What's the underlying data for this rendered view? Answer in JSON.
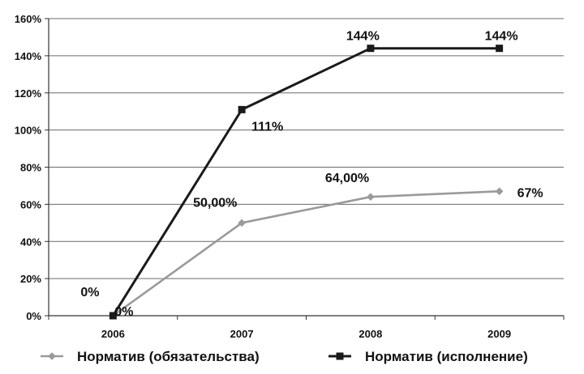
{
  "chart_data": {
    "type": "line",
    "title": "",
    "xlabel": "",
    "ylabel": "",
    "categories": [
      "2006",
      "2007",
      "2008",
      "2009"
    ],
    "ylim": [
      0,
      160
    ],
    "yticks": [
      "0%",
      "20%",
      "40%",
      "60%",
      "80%",
      "100%",
      "120%",
      "140%",
      "160%"
    ],
    "grid": true,
    "legend_position": "bottom",
    "series": [
      {
        "name": "Норматив (обязательства)",
        "values": [
          0,
          50,
          64,
          67
        ],
        "labels": [
          "0%",
          "50,00%",
          "64,00%",
          "67%"
        ],
        "color": "#9a9a9a",
        "marker": "diamond"
      },
      {
        "name": "Норматив (исполнение)",
        "values": [
          0,
          111,
          144,
          144
        ],
        "labels": [
          "0%",
          "111%",
          "144%",
          "144%"
        ],
        "color": "#1a1a1a",
        "marker": "square"
      }
    ]
  }
}
